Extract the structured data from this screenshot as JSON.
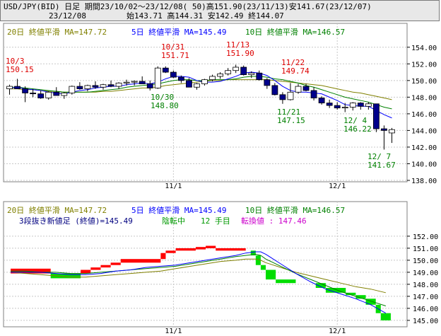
{
  "header": {
    "line1": "USD/JPY(BID) 日足 期間23/10/02～23/12/08( 50)高151.90(23/11/13)安141.67(23/12/07)",
    "date": "23/12/08",
    "ohlc": "始143.71 高144.31 安142.49 終144.07"
  },
  "legend": {
    "ma20": "20日 終値平滑 MA=147.72",
    "ma5": "5日 終値平滑 MA=145.49",
    "ma10": "10日 終値平滑 MA=146.57",
    "sanbon": "3段抜き新値足 (終値)=145.49",
    "status_trend": "陰転中",
    "status_count": "12 手目",
    "status_reversal": "転換値 : 147.46"
  },
  "colors": {
    "ma20": "#808000",
    "ma5": "#0000ff",
    "ma10": "#008000",
    "up_candle": "#ffffff",
    "down_candle": "#00008b",
    "sanbon_up": "#ff0000",
    "sanbon_down": "#00dd00",
    "high_label": "#dd0000",
    "low_label": "#008000"
  },
  "chart_data": [
    {
      "type": "candlestick",
      "x_ticks": [
        "11/1",
        "12/1"
      ],
      "ylim": [
        138,
        155
      ],
      "y_ticks": [
        "138.00",
        "140.00",
        "142.00",
        "144.00",
        "146.00",
        "148.00",
        "150.00",
        "152.00",
        "154.00"
      ],
      "annotations": [
        {
          "date": "10/3",
          "value": "150.15",
          "kind": "high"
        },
        {
          "date": "10/31",
          "value": "151.71",
          "kind": "high"
        },
        {
          "date": "11/13",
          "value": "151.90",
          "kind": "high"
        },
        {
          "date": "11/22",
          "value": "149.74",
          "kind": "high"
        },
        {
          "date": "10/30",
          "value": "148.80",
          "kind": "low"
        },
        {
          "date": "11/21",
          "value": "147.15",
          "kind": "low"
        },
        {
          "date": "12/ 4",
          "value": "146.22",
          "kind": "low"
        },
        {
          "date": "12/ 7",
          "value": "141.67",
          "kind": "low"
        }
      ],
      "candles": [
        [
          149.0,
          149.5,
          148.3,
          149.3
        ],
        [
          149.3,
          150.2,
          149.0,
          149.0
        ],
        [
          149.0,
          149.3,
          147.4,
          148.5
        ],
        [
          148.5,
          149.0,
          148.0,
          148.4
        ],
        [
          148.4,
          148.8,
          147.8,
          147.9
        ],
        [
          147.9,
          148.7,
          147.7,
          148.6
        ],
        [
          148.6,
          149.2,
          148.3,
          148.2
        ],
        [
          148.2,
          148.6,
          147.8,
          148.5
        ],
        [
          148.5,
          149.4,
          148.3,
          149.3
        ],
        [
          149.3,
          149.8,
          148.9,
          149.0
        ],
        [
          149.0,
          149.5,
          148.7,
          149.4
        ],
        [
          149.4,
          149.9,
          149.0,
          149.2
        ],
        [
          149.2,
          149.6,
          148.9,
          149.5
        ],
        [
          149.5,
          150.0,
          149.2,
          149.3
        ],
        [
          149.3,
          149.8,
          149.0,
          149.7
        ],
        [
          149.7,
          150.1,
          149.4,
          149.8
        ],
        [
          149.8,
          150.0,
          149.4,
          149.9
        ],
        [
          149.9,
          150.5,
          149.6,
          149.6
        ],
        [
          149.6,
          150.0,
          148.8,
          149.1
        ],
        [
          149.1,
          151.7,
          149.0,
          151.5
        ],
        [
          151.5,
          151.7,
          150.9,
          151.0
        ],
        [
          151.0,
          151.2,
          150.3,
          150.4
        ],
        [
          150.4,
          150.6,
          149.7,
          150.0
        ],
        [
          150.0,
          150.3,
          149.2,
          149.2
        ],
        [
          149.2,
          149.7,
          148.9,
          149.6
        ],
        [
          149.6,
          150.2,
          149.4,
          150.1
        ],
        [
          150.1,
          150.7,
          149.9,
          150.5
        ],
        [
          150.5,
          151.0,
          150.2,
          150.8
        ],
        [
          150.8,
          151.5,
          150.6,
          151.2
        ],
        [
          151.2,
          151.9,
          150.9,
          151.6
        ],
        [
          151.6,
          151.8,
          150.6,
          150.7
        ],
        [
          150.7,
          151.1,
          150.3,
          150.9
        ],
        [
          150.9,
          151.2,
          150.0,
          150.1
        ],
        [
          150.1,
          150.3,
          149.0,
          149.4
        ],
        [
          149.4,
          149.7,
          148.2,
          148.3
        ],
        [
          148.3,
          148.6,
          147.2,
          147.7
        ],
        [
          147.7,
          149.7,
          147.6,
          148.6
        ],
        [
          148.6,
          149.6,
          148.4,
          149.3
        ],
        [
          149.3,
          149.6,
          148.7,
          148.8
        ],
        [
          148.8,
          149.2,
          147.6,
          147.9
        ],
        [
          147.9,
          148.1,
          147.1,
          147.3
        ],
        [
          147.3,
          147.7,
          146.7,
          147.0
        ],
        [
          147.0,
          147.4,
          146.5,
          146.7
        ],
        [
          146.7,
          147.3,
          146.2,
          146.8
        ],
        [
          146.8,
          147.4,
          146.4,
          147.3
        ],
        [
          147.3,
          147.4,
          146.5,
          146.9
        ],
        [
          146.9,
          147.4,
          146.5,
          147.2
        ],
        [
          147.2,
          147.2,
          143.8,
          144.2
        ],
        [
          144.2,
          144.6,
          141.7,
          144.0
        ],
        [
          143.7,
          144.3,
          142.5,
          144.1
        ]
      ],
      "ma5": [
        149.1,
        149.2,
        149.0,
        148.9,
        148.8,
        148.6,
        148.5,
        148.4,
        148.6,
        148.8,
        148.9,
        149.1,
        149.2,
        149.3,
        149.3,
        149.5,
        149.6,
        149.7,
        149.6,
        149.8,
        150.2,
        150.5,
        150.5,
        150.4,
        150.0,
        149.8,
        149.8,
        149.9,
        150.2,
        150.5,
        150.9,
        151.0,
        150.9,
        150.6,
        150.0,
        149.3,
        148.8,
        148.6,
        148.6,
        148.5,
        148.4,
        148.0,
        147.6,
        147.1,
        147.0,
        146.9,
        146.9,
        146.4,
        145.9,
        145.5
      ],
      "ma10": [
        149.2,
        149.2,
        149.1,
        149.0,
        148.9,
        148.8,
        148.7,
        148.6,
        148.6,
        148.6,
        148.6,
        148.7,
        148.8,
        148.9,
        149.0,
        149.2,
        149.3,
        149.4,
        149.5,
        149.6,
        149.8,
        150.0,
        150.1,
        150.1,
        150.0,
        150.0,
        150.1,
        150.1,
        150.1,
        150.2,
        150.4,
        150.5,
        150.5,
        150.4,
        150.2,
        150.1,
        149.9,
        149.7,
        149.4,
        149.2,
        148.9,
        148.6,
        148.3,
        148.0,
        147.8,
        147.6,
        147.4,
        147.1,
        146.8,
        146.6
      ],
      "ma20": [
        149.0,
        149.0,
        148.9,
        148.9,
        148.8,
        148.7,
        148.7,
        148.6,
        148.6,
        148.6,
        148.6,
        148.6,
        148.7,
        148.7,
        148.8,
        148.9,
        149.0,
        149.1,
        149.1,
        149.2,
        149.4,
        149.5,
        149.6,
        149.7,
        149.8,
        149.9,
        150.0,
        150.0,
        150.1,
        150.1,
        150.1,
        150.1,
        150.1,
        150.1,
        150.0,
        149.9,
        149.8,
        149.7,
        149.6,
        149.5,
        149.4,
        149.2,
        149.0,
        148.8,
        148.6,
        148.5,
        148.3,
        148.1,
        147.9,
        147.7
      ]
    },
    {
      "type": "three-line-break",
      "x_ticks": [
        "11/1",
        "12/1"
      ],
      "ylim": [
        144.7,
        152.7
      ],
      "y_ticks": [
        "145.00",
        "146.00",
        "147.00",
        "148.00",
        "149.00",
        "150.00",
        "151.00",
        "152.00"
      ],
      "bricks": [
        {
          "i0": 1,
          "i1": 9,
          "lo": 148.9,
          "hi": 149.3,
          "dir": "up"
        },
        {
          "i0": 9,
          "i1": 15,
          "lo": 148.5,
          "hi": 148.9,
          "dir": "down"
        },
        {
          "i0": 15,
          "i1": 17,
          "lo": 148.9,
          "hi": 149.2,
          "dir": "up"
        },
        {
          "i0": 17,
          "i1": 19,
          "lo": 149.2,
          "hi": 149.4,
          "dir": "up"
        },
        {
          "i0": 19,
          "i1": 21,
          "lo": 149.4,
          "hi": 149.6,
          "dir": "up"
        },
        {
          "i0": 21,
          "i1": 23,
          "lo": 149.6,
          "hi": 149.8,
          "dir": "up"
        },
        {
          "i0": 23,
          "i1": 31,
          "lo": 149.8,
          "hi": 150.1,
          "dir": "up"
        },
        {
          "i0": 31,
          "i1": 32,
          "lo": 150.1,
          "hi": 150.6,
          "dir": "up"
        },
        {
          "i0": 32,
          "i1": 34,
          "lo": 150.6,
          "hi": 150.8,
          "dir": "up"
        },
        {
          "i0": 34,
          "i1": 38,
          "lo": 150.8,
          "hi": 151.0,
          "dir": "up"
        },
        {
          "i0": 38,
          "i1": 40,
          "lo": 150.9,
          "hi": 151.1,
          "dir": "up"
        },
        {
          "i0": 40,
          "i1": 42,
          "lo": 151.0,
          "hi": 151.2,
          "dir": "up"
        },
        {
          "i0": 42,
          "i1": 48,
          "lo": 150.8,
          "hi": 151.0,
          "dir": "up"
        },
        {
          "i0": 49,
          "i1": 50,
          "lo": 150.4,
          "hi": 150.8,
          "dir": "down"
        },
        {
          "i0": 50,
          "i1": 51,
          "lo": 149.6,
          "hi": 150.4,
          "dir": "down"
        },
        {
          "i0": 51,
          "i1": 52,
          "lo": 149.2,
          "hi": 149.6,
          "dir": "down"
        },
        {
          "i0": 52,
          "i1": 54,
          "lo": 148.4,
          "hi": 149.2,
          "dir": "down"
        },
        {
          "i0": 54,
          "i1": 58,
          "lo": 148.1,
          "hi": 148.4,
          "dir": "down"
        },
        {
          "i0": 62,
          "i1": 64,
          "lo": 147.7,
          "hi": 148.1,
          "dir": "down"
        },
        {
          "i0": 64,
          "i1": 68,
          "lo": 147.3,
          "hi": 147.7,
          "dir": "down"
        },
        {
          "i0": 68,
          "i1": 70,
          "lo": 147.1,
          "hi": 147.3,
          "dir": "down"
        },
        {
          "i0": 70,
          "i1": 72,
          "lo": 146.8,
          "hi": 147.1,
          "dir": "down"
        },
        {
          "i0": 72,
          "i1": 74,
          "lo": 146.3,
          "hi": 146.8,
          "dir": "down"
        },
        {
          "i0": 74,
          "i1": 75,
          "lo": 145.6,
          "hi": 146.3,
          "dir": "down"
        },
        {
          "i0": 75,
          "i1": 77,
          "lo": 145.0,
          "hi": 145.6,
          "dir": "down"
        }
      ],
      "ma5": [
        149.0,
        149.0,
        149.0,
        148.9,
        148.8,
        148.8,
        148.9,
        149.1,
        149.2,
        149.4,
        149.5,
        149.6,
        149.8,
        150.0,
        150.2,
        150.4,
        150.6,
        150.7,
        150.7,
        150.5,
        149.7,
        148.9,
        148.2,
        147.6,
        147.2,
        146.8,
        146.3,
        145.6
      ],
      "ma10": [
        149.1,
        149.1,
        149.0,
        149.0,
        148.9,
        148.9,
        149.0,
        149.1,
        149.2,
        149.3,
        149.4,
        149.5,
        149.7,
        149.9,
        150.1,
        150.3,
        150.4,
        150.5,
        150.4,
        150.1,
        149.5,
        148.9,
        148.4,
        147.9,
        147.4,
        147.0,
        146.6,
        146.2
      ],
      "ma20": [
        149.0,
        148.9,
        148.8,
        148.7,
        148.6,
        148.6,
        148.7,
        148.8,
        148.9,
        149.0,
        149.1,
        149.3,
        149.5,
        149.7,
        149.9,
        150.0,
        150.1,
        150.1,
        150.0,
        149.8,
        149.4,
        149.0,
        148.7,
        148.4,
        148.1,
        147.8,
        147.6,
        147.3
      ],
      "ma_x": [
        1,
        4,
        7,
        10,
        13,
        16,
        19,
        22,
        25,
        28,
        31,
        34,
        37,
        40,
        43,
        46,
        48,
        50,
        51,
        52,
        55,
        58,
        61,
        64,
        67,
        70,
        73,
        76
      ]
    }
  ]
}
